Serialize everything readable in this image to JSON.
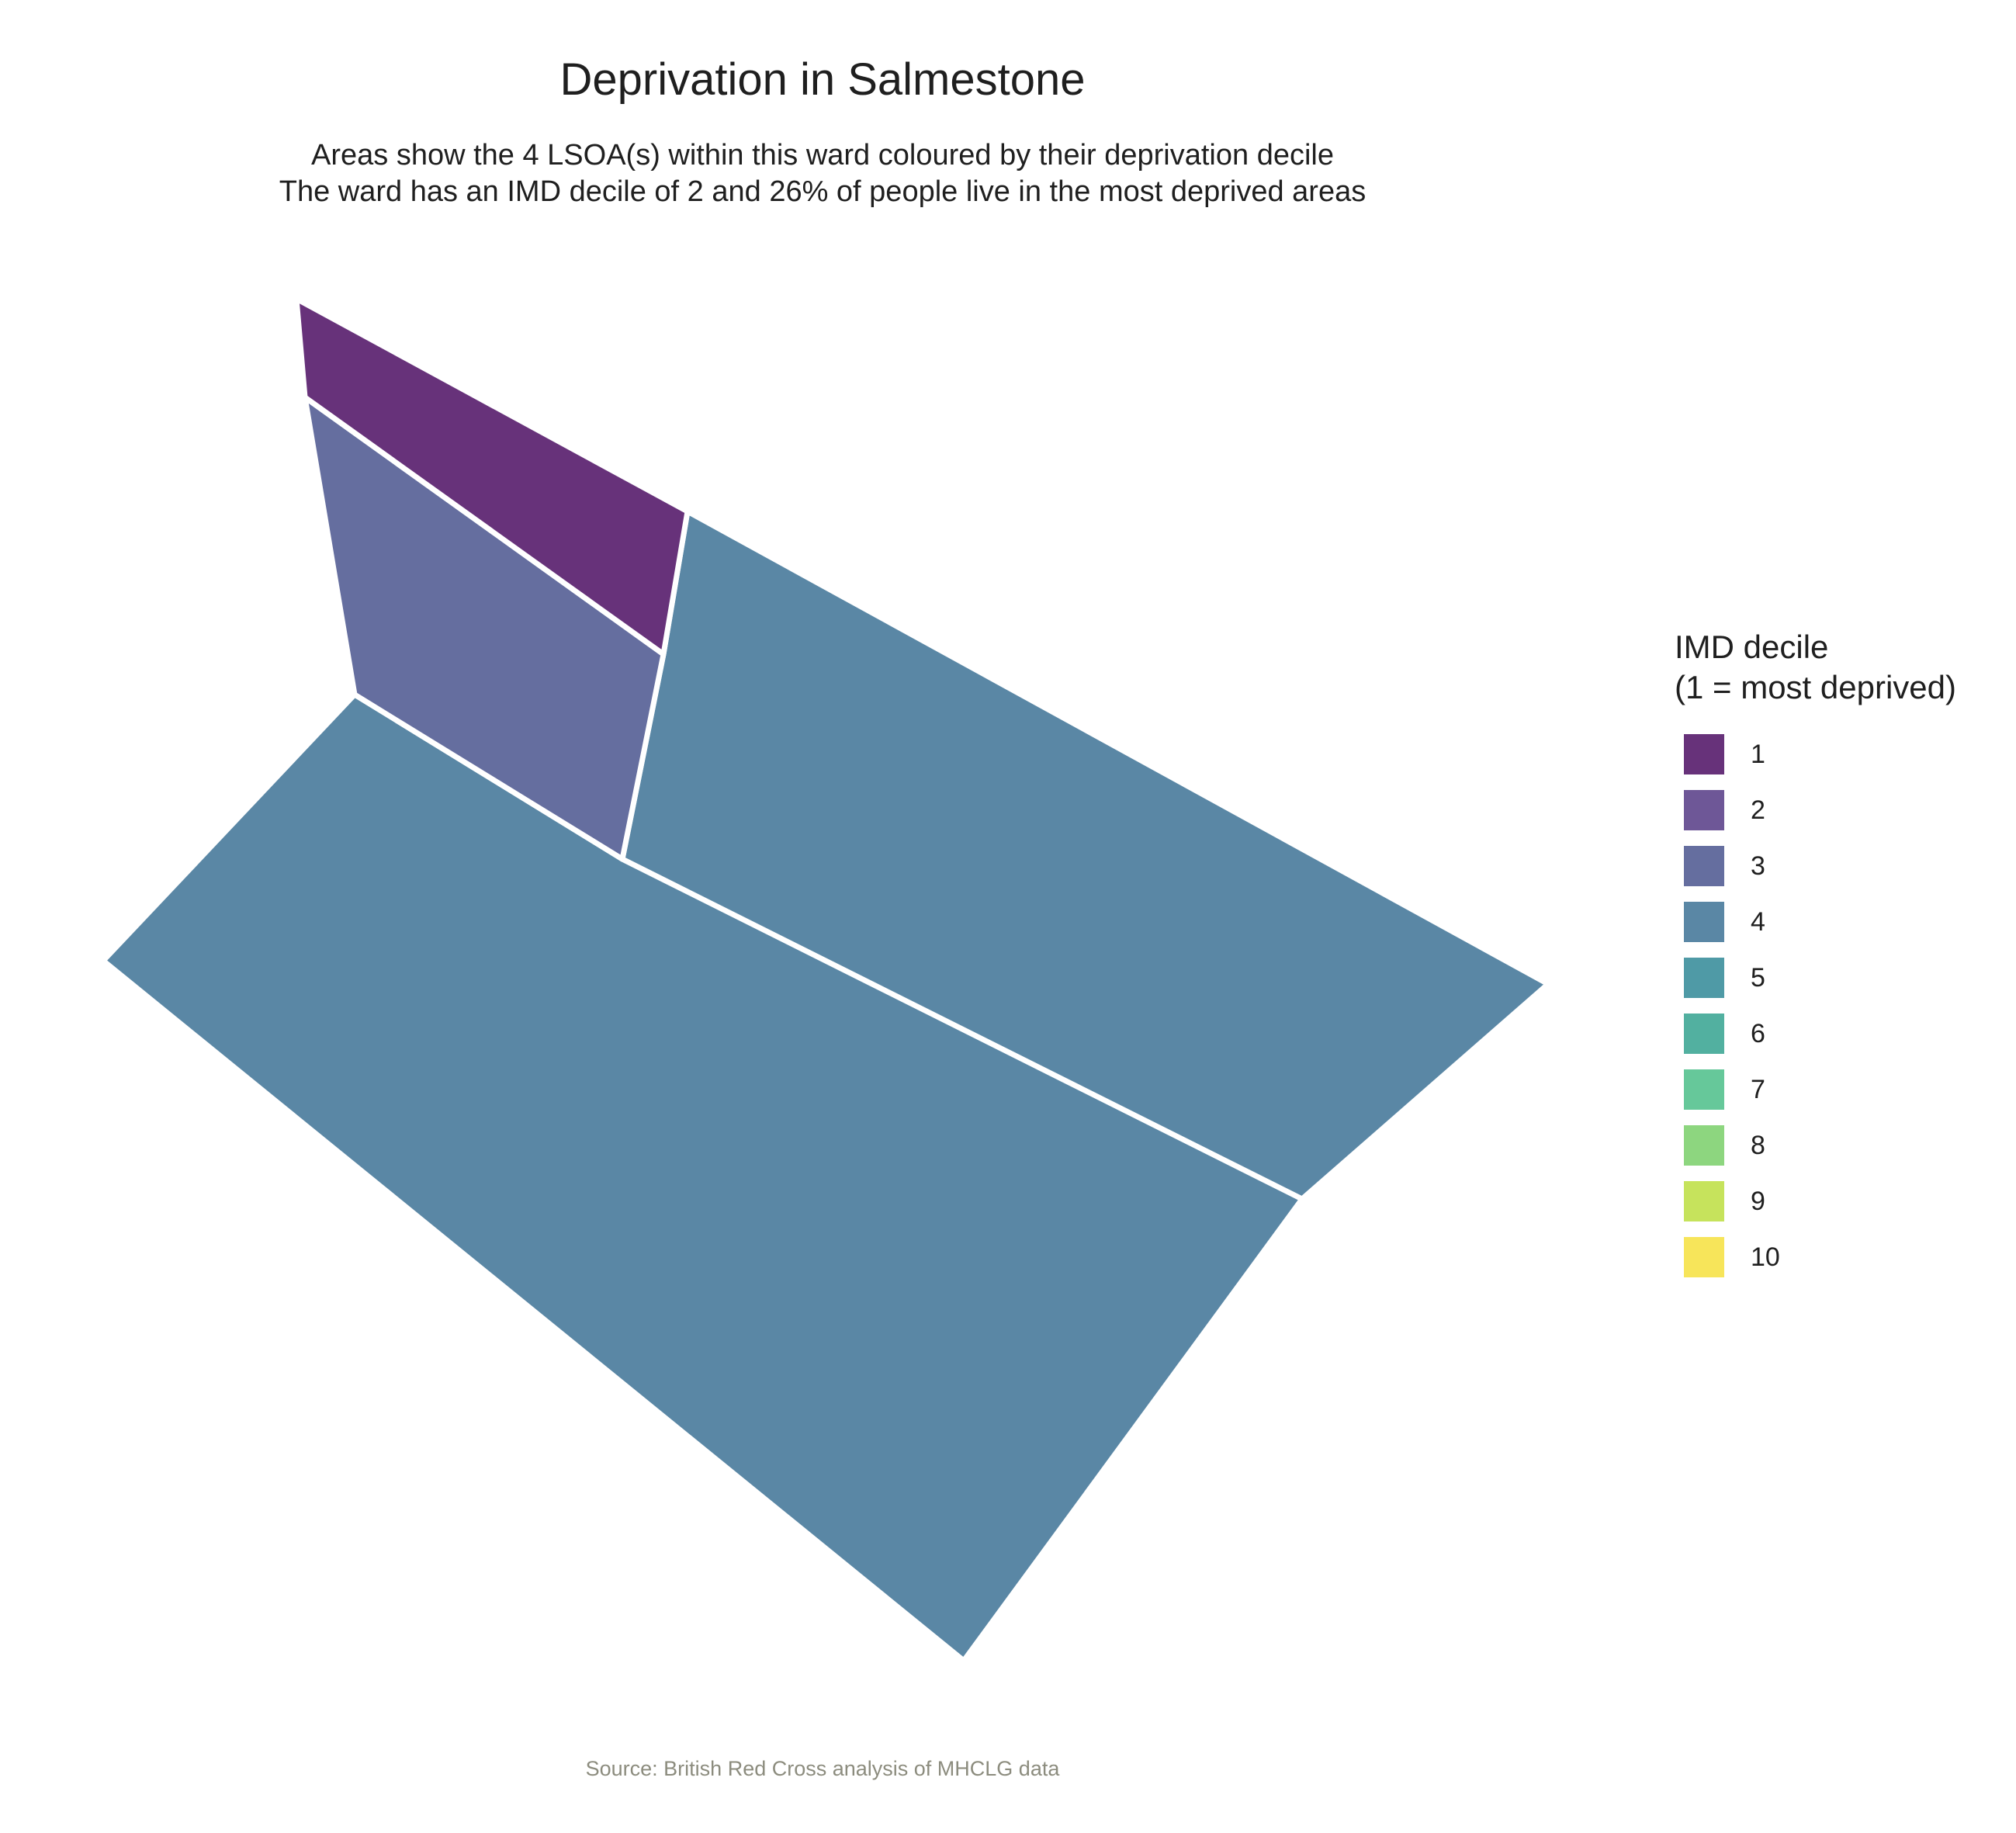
{
  "title": "Deprivation in Salmestone",
  "subtitle_line1": "Areas show the 4 LSOA(s) within this ward coloured by their deprivation decile",
  "subtitle_line2": "The ward has an IMD decile of 2 and 26% of people live in the most deprived areas",
  "source": "Source: British Red Cross analysis of MHCLG data",
  "legend": {
    "title_line1": "IMD decile",
    "title_line2": "(1 = most deprived)",
    "items": [
      {
        "label": "1",
        "color": "#67327a"
      },
      {
        "label": "2",
        "color": "#6e5797"
      },
      {
        "label": "3",
        "color": "#656e9f"
      },
      {
        "label": "4",
        "color": "#5a87a5"
      },
      {
        "label": "5",
        "color": "#4f9aa6"
      },
      {
        "label": "6",
        "color": "#52b0a0"
      },
      {
        "label": "7",
        "color": "#66c89a"
      },
      {
        "label": "8",
        "color": "#8dd67f"
      },
      {
        "label": "9",
        "color": "#c6e35c"
      },
      {
        "label": "10",
        "color": "#f7e55a"
      }
    ]
  },
  "map_data": {
    "type": "choropleth",
    "areas": [
      {
        "name": "north-tip",
        "decile": 1
      },
      {
        "name": "north-west",
        "decile": 3
      },
      {
        "name": "north-east",
        "decile": 4
      },
      {
        "name": "south",
        "decile": 4
      }
    ]
  }
}
